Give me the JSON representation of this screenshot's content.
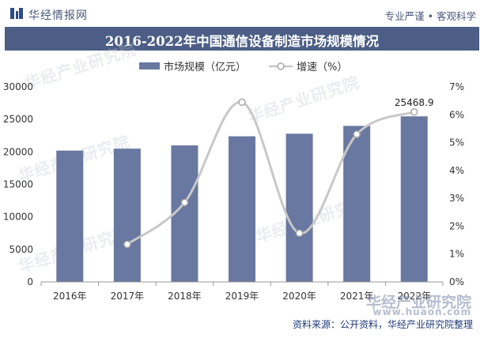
{
  "header": {
    "brand": "华经情报网",
    "slogan": "专业严谨 • 客观科学"
  },
  "chart_data": {
    "type": "bar",
    "title": "2016-2022年中国通信设备制造市场规模情况",
    "categories": [
      "2016年",
      "2017年",
      "2018年",
      "2019年",
      "2020年",
      "2021年",
      "2022年"
    ],
    "series": [
      {
        "name": "市场规模（亿元）",
        "type": "bar",
        "axis": "left",
        "values": [
          20200,
          20500,
          21000,
          22400,
          22800,
          24000,
          25468.9
        ]
      },
      {
        "name": "增速（%）",
        "type": "line",
        "smooth": true,
        "axis": "right",
        "values": [
          null,
          1.35,
          2.85,
          6.45,
          1.75,
          5.3,
          6.1
        ]
      }
    ],
    "ylim_left": [
      0,
      30000
    ],
    "yticks_left": [
      "0",
      "5000",
      "10000",
      "15000",
      "20000",
      "25000",
      "30000"
    ],
    "ylim_right": [
      0,
      7
    ],
    "yticks_right": [
      "0%",
      "1%",
      "2%",
      "3%",
      "4%",
      "5%",
      "6%",
      "7%"
    ],
    "annotation": {
      "category": "2022年",
      "text": "25468.9"
    },
    "colors": {
      "bar": "#6978a0",
      "line": "#c8c8c8",
      "marker_fill": "#ffffff",
      "marker_stroke": "#a8a8a8"
    }
  },
  "footer": {
    "source": "资料来源：公开资料，华经产业研究院整理"
  },
  "watermark": {
    "text": "华经产业研究院",
    "url": "www.huaon.com"
  }
}
